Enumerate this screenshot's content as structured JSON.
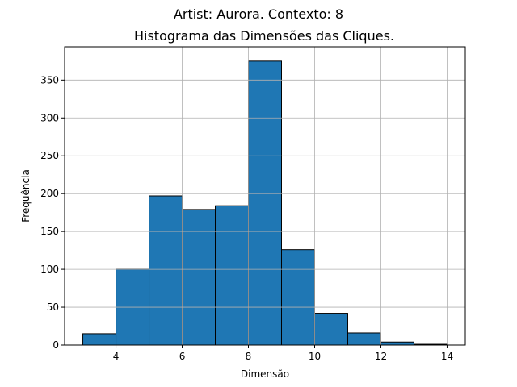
{
  "chart_data": {
    "type": "bar",
    "title": "Artist: Aurora. Contexto: 8",
    "subtitle": "Histograma das Dimensões das Cliques.",
    "xlabel": "Dimensão",
    "ylabel": "Frequência",
    "bins": [
      {
        "start": 3,
        "end": 4,
        "value": 15
      },
      {
        "start": 4,
        "end": 5,
        "value": 100
      },
      {
        "start": 5,
        "end": 6,
        "value": 197
      },
      {
        "start": 6,
        "end": 7,
        "value": 179
      },
      {
        "start": 7,
        "end": 8,
        "value": 184
      },
      {
        "start": 8,
        "end": 9,
        "value": 375
      },
      {
        "start": 9,
        "end": 10,
        "value": 126
      },
      {
        "start": 10,
        "end": 11,
        "value": 42
      },
      {
        "start": 11,
        "end": 12,
        "value": 16
      },
      {
        "start": 12,
        "end": 13,
        "value": 4
      },
      {
        "start": 13,
        "end": 14,
        "value": 1
      }
    ],
    "xlim": [
      2.45,
      14.55
    ],
    "ylim": [
      0,
      394
    ],
    "xticks": [
      4,
      6,
      8,
      10,
      12,
      14
    ],
    "yticks": [
      0,
      50,
      100,
      150,
      200,
      250,
      300,
      350
    ],
    "grid": true,
    "bar_color": "#1f77b4",
    "edge_color": "#000000"
  }
}
